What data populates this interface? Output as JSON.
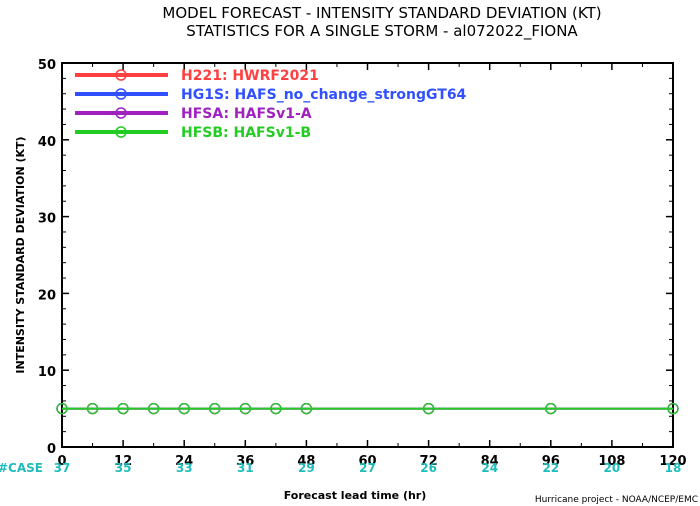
{
  "chart_data": {
    "type": "line",
    "title": "MODEL FORECAST - INTENSITY STANDARD DEVIATION (KT)",
    "subtitle": "STATISTICS FOR A SINGLE STORM - al072022_FIONA",
    "xlabel": "Forecast lead time (hr)",
    "ylabel": "INTENSITY STANDARD DEVIATION (KT)",
    "xlim": [
      0,
      120
    ],
    "ylim": [
      0,
      50
    ],
    "x_ticks": [
      0,
      12,
      24,
      36,
      48,
      60,
      72,
      84,
      96,
      108,
      120
    ],
    "y_ticks": [
      0,
      10,
      20,
      30,
      40,
      50
    ],
    "legend_position": "top-left",
    "series": [
      {
        "name": "H221: HWRF2021",
        "color": "#ff4040",
        "x": [
          0,
          6,
          12,
          18,
          24,
          30,
          36,
          42,
          48,
          72,
          96,
          120
        ],
        "values": [
          5,
          5,
          5,
          5,
          5,
          5,
          5,
          5,
          5,
          5,
          5,
          5
        ]
      },
      {
        "name": "HG1S: HAFS_no_change_strongGT64",
        "color": "#3050ff",
        "x": [
          0,
          6,
          12,
          18,
          24,
          30,
          36,
          42,
          48,
          72,
          96,
          120
        ],
        "values": [
          5,
          5,
          5,
          5,
          5,
          5,
          5,
          5,
          5,
          5,
          5,
          5
        ]
      },
      {
        "name": "HFSA: HAFSv1-A",
        "color": "#a020c0",
        "x": [
          0,
          6,
          12,
          18,
          24,
          30,
          36,
          42,
          48,
          72,
          96,
          120
        ],
        "values": [
          5,
          5,
          5,
          5,
          5,
          5,
          5,
          5,
          5,
          5,
          5,
          5
        ]
      },
      {
        "name": "HFSB: HAFSv1-B",
        "color": "#22cc22",
        "x": [
          0,
          6,
          12,
          18,
          24,
          30,
          36,
          42,
          48,
          72,
          96,
          120
        ],
        "values": [
          5,
          5,
          5,
          5,
          5,
          5,
          5,
          5,
          5,
          5,
          5,
          5
        ]
      }
    ],
    "case_label": "#CASE",
    "case_counts": [
      {
        "x": 0,
        "n": "37"
      },
      {
        "x": 12,
        "n": "35"
      },
      {
        "x": 24,
        "n": "33"
      },
      {
        "x": 36,
        "n": "31"
      },
      {
        "x": 48,
        "n": "29"
      },
      {
        "x": 60,
        "n": "27"
      },
      {
        "x": 72,
        "n": "26"
      },
      {
        "x": 84,
        "n": "24"
      },
      {
        "x": 96,
        "n": "22"
      },
      {
        "x": 108,
        "n": "20"
      },
      {
        "x": 120,
        "n": "18"
      }
    ],
    "credit": "Hurricane project - NOAA/NCEP/EMC"
  }
}
